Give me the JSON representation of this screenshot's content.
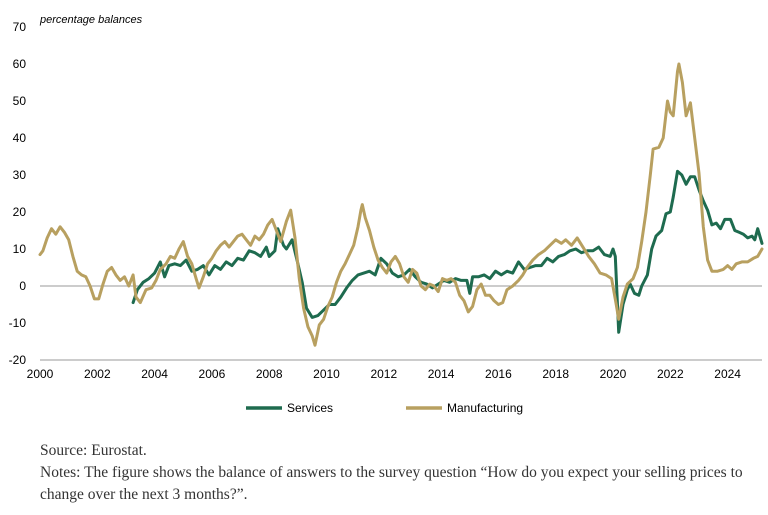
{
  "chart_data": {
    "type": "line",
    "unit_label": "percentage balances",
    "ylim": [
      -20,
      70
    ],
    "yticks": [
      -20,
      -10,
      0,
      10,
      20,
      30,
      40,
      50,
      60,
      70
    ],
    "xlim": [
      2000,
      2025.2
    ],
    "xticks": [
      2000,
      2002,
      2004,
      2006,
      2008,
      2010,
      2012,
      2014,
      2016,
      2018,
      2020,
      2022,
      2024
    ],
    "grid": false,
    "legend_position": "bottom",
    "series": [
      {
        "name": "Services",
        "color": "#1e6b4f",
        "points": [
          [
            2003.25,
            -4.5
          ],
          [
            2003.4,
            -1
          ],
          [
            2003.6,
            1
          ],
          [
            2003.8,
            2
          ],
          [
            2004.0,
            3.5
          ],
          [
            2004.2,
            6.5
          ],
          [
            2004.35,
            2.5
          ],
          [
            2004.5,
            5.5
          ],
          [
            2004.7,
            6
          ],
          [
            2004.9,
            5.5
          ],
          [
            2005.1,
            7
          ],
          [
            2005.3,
            4
          ],
          [
            2005.5,
            4.5
          ],
          [
            2005.7,
            5.5
          ],
          [
            2005.9,
            3
          ],
          [
            2006.1,
            5.5
          ],
          [
            2006.3,
            4.5
          ],
          [
            2006.5,
            6.5
          ],
          [
            2006.7,
            5.5
          ],
          [
            2006.9,
            7.5
          ],
          [
            2007.1,
            7
          ],
          [
            2007.3,
            9.5
          ],
          [
            2007.5,
            9
          ],
          [
            2007.7,
            8
          ],
          [
            2007.9,
            10.5
          ],
          [
            2008.0,
            8
          ],
          [
            2008.2,
            9.5
          ],
          [
            2008.3,
            15.5
          ],
          [
            2008.5,
            11
          ],
          [
            2008.6,
            10
          ],
          [
            2008.8,
            12.5
          ],
          [
            2009.0,
            6
          ],
          [
            2009.15,
            1
          ],
          [
            2009.3,
            -6
          ],
          [
            2009.5,
            -8.5
          ],
          [
            2009.7,
            -8
          ],
          [
            2009.9,
            -6.5
          ],
          [
            2010.1,
            -5
          ],
          [
            2010.3,
            -5
          ],
          [
            2010.5,
            -3
          ],
          [
            2010.7,
            -0.5
          ],
          [
            2010.9,
            1.5
          ],
          [
            2011.1,
            3
          ],
          [
            2011.3,
            3.5
          ],
          [
            2011.5,
            4
          ],
          [
            2011.7,
            3
          ],
          [
            2011.9,
            7.5
          ],
          [
            2012.1,
            6
          ],
          [
            2012.3,
            3.5
          ],
          [
            2012.5,
            2.5
          ],
          [
            2012.7,
            3
          ],
          [
            2012.9,
            4.5
          ],
          [
            2013.1,
            2.5
          ],
          [
            2013.3,
            1
          ],
          [
            2013.5,
            0.5
          ],
          [
            2013.7,
            -0.5
          ],
          [
            2013.9,
            0.5
          ],
          [
            2014.1,
            1.5
          ],
          [
            2014.3,
            1
          ],
          [
            2014.5,
            2
          ],
          [
            2014.7,
            1.5
          ],
          [
            2014.9,
            1.5
          ],
          [
            2015.0,
            -2
          ],
          [
            2015.1,
            2.5
          ],
          [
            2015.3,
            2.5
          ],
          [
            2015.5,
            3
          ],
          [
            2015.7,
            2
          ],
          [
            2015.9,
            4
          ],
          [
            2016.1,
            3
          ],
          [
            2016.3,
            4
          ],
          [
            2016.5,
            3.5
          ],
          [
            2016.7,
            6.5
          ],
          [
            2016.9,
            4.5
          ],
          [
            2017.1,
            5
          ],
          [
            2017.3,
            5.5
          ],
          [
            2017.5,
            5.5
          ],
          [
            2017.7,
            7.5
          ],
          [
            2017.9,
            6.5
          ],
          [
            2018.1,
            8
          ],
          [
            2018.3,
            8.5
          ],
          [
            2018.5,
            9.5
          ],
          [
            2018.7,
            10
          ],
          [
            2018.9,
            9
          ],
          [
            2019.1,
            9.5
          ],
          [
            2019.3,
            9.5
          ],
          [
            2019.5,
            10.5
          ],
          [
            2019.7,
            8.5
          ],
          [
            2019.9,
            8
          ],
          [
            2020.0,
            10
          ],
          [
            2020.08,
            8
          ],
          [
            2020.2,
            -12.5
          ],
          [
            2020.35,
            -5
          ],
          [
            2020.5,
            -1
          ],
          [
            2020.6,
            0.5
          ],
          [
            2020.75,
            -2
          ],
          [
            2020.9,
            -2.5
          ],
          [
            2021.0,
            0
          ],
          [
            2021.2,
            3
          ],
          [
            2021.35,
            10
          ],
          [
            2021.5,
            13.5
          ],
          [
            2021.7,
            15
          ],
          [
            2021.85,
            19.5
          ],
          [
            2022.0,
            20
          ],
          [
            2022.1,
            24
          ],
          [
            2022.25,
            31
          ],
          [
            2022.4,
            30
          ],
          [
            2022.55,
            27.5
          ],
          [
            2022.7,
            29.5
          ],
          [
            2022.85,
            29.5
          ],
          [
            2023.0,
            26
          ],
          [
            2023.15,
            23
          ],
          [
            2023.3,
            20.5
          ],
          [
            2023.45,
            16.5
          ],
          [
            2023.6,
            17
          ],
          [
            2023.75,
            15.5
          ],
          [
            2023.9,
            18
          ],
          [
            2024.1,
            18
          ],
          [
            2024.25,
            15
          ],
          [
            2024.4,
            14.5
          ],
          [
            2024.55,
            14
          ],
          [
            2024.7,
            13
          ],
          [
            2024.85,
            13.5
          ],
          [
            2024.95,
            12.5
          ],
          [
            2025.05,
            15.5
          ],
          [
            2025.2,
            11.5
          ]
        ]
      },
      {
        "name": "Manufacturing",
        "color": "#b8a060",
        "points": [
          [
            2000.0,
            8.5
          ],
          [
            2000.1,
            9.5
          ],
          [
            2000.25,
            13
          ],
          [
            2000.4,
            15.5
          ],
          [
            2000.55,
            14
          ],
          [
            2000.7,
            16
          ],
          [
            2000.85,
            14.5
          ],
          [
            2001.0,
            12.5
          ],
          [
            2001.15,
            8
          ],
          [
            2001.3,
            4
          ],
          [
            2001.45,
            3
          ],
          [
            2001.6,
            2.5
          ],
          [
            2001.75,
            0
          ],
          [
            2001.9,
            -3.5
          ],
          [
            2002.05,
            -3.5
          ],
          [
            2002.2,
            0.5
          ],
          [
            2002.35,
            4
          ],
          [
            2002.5,
            5
          ],
          [
            2002.65,
            3
          ],
          [
            2002.8,
            1.5
          ],
          [
            2002.95,
            2.5
          ],
          [
            2003.1,
            0
          ],
          [
            2003.25,
            3
          ],
          [
            2003.35,
            -3
          ],
          [
            2003.5,
            -4.5
          ],
          [
            2003.7,
            -1
          ],
          [
            2003.9,
            -0.5
          ],
          [
            2004.05,
            1.5
          ],
          [
            2004.2,
            4.5
          ],
          [
            2004.4,
            6
          ],
          [
            2004.55,
            8
          ],
          [
            2004.7,
            7.5
          ],
          [
            2004.85,
            10
          ],
          [
            2005.0,
            12
          ],
          [
            2005.15,
            8
          ],
          [
            2005.3,
            6
          ],
          [
            2005.45,
            2
          ],
          [
            2005.55,
            -0.5
          ],
          [
            2005.7,
            2.5
          ],
          [
            2005.85,
            6
          ],
          [
            2006.0,
            7.5
          ],
          [
            2006.15,
            9.5
          ],
          [
            2006.3,
            11
          ],
          [
            2006.45,
            12
          ],
          [
            2006.6,
            10.5
          ],
          [
            2006.75,
            12
          ],
          [
            2006.9,
            13.5
          ],
          [
            2007.05,
            14
          ],
          [
            2007.2,
            12.5
          ],
          [
            2007.35,
            11
          ],
          [
            2007.5,
            13.5
          ],
          [
            2007.65,
            12.5
          ],
          [
            2007.8,
            14
          ],
          [
            2007.95,
            16.5
          ],
          [
            2008.1,
            18
          ],
          [
            2008.25,
            15
          ],
          [
            2008.4,
            12
          ],
          [
            2008.6,
            17.5
          ],
          [
            2008.75,
            20.5
          ],
          [
            2008.9,
            13
          ],
          [
            2009.05,
            2
          ],
          [
            2009.2,
            -6
          ],
          [
            2009.35,
            -11
          ],
          [
            2009.5,
            -13.5
          ],
          [
            2009.6,
            -16
          ],
          [
            2009.75,
            -10.5
          ],
          [
            2009.9,
            -9
          ],
          [
            2010.05,
            -5.5
          ],
          [
            2010.2,
            -3
          ],
          [
            2010.35,
            1
          ],
          [
            2010.5,
            4
          ],
          [
            2010.65,
            6
          ],
          [
            2010.8,
            8.5
          ],
          [
            2010.95,
            11
          ],
          [
            2011.1,
            16
          ],
          [
            2011.2,
            20.5
          ],
          [
            2011.25,
            22
          ],
          [
            2011.35,
            18.5
          ],
          [
            2011.5,
            15
          ],
          [
            2011.65,
            10.5
          ],
          [
            2011.8,
            7
          ],
          [
            2011.95,
            5
          ],
          [
            2012.1,
            3.5
          ],
          [
            2012.25,
            6.5
          ],
          [
            2012.4,
            8
          ],
          [
            2012.55,
            6
          ],
          [
            2012.7,
            2.5
          ],
          [
            2012.85,
            1
          ],
          [
            2013.0,
            4.5
          ],
          [
            2013.15,
            3.5
          ],
          [
            2013.3,
            0
          ],
          [
            2013.45,
            -1
          ],
          [
            2013.6,
            0.5
          ],
          [
            2013.75,
            0
          ],
          [
            2013.9,
            -1.5
          ],
          [
            2014.05,
            2
          ],
          [
            2014.2,
            1.5
          ],
          [
            2014.35,
            2
          ],
          [
            2014.5,
            1
          ],
          [
            2014.65,
            -2.5
          ],
          [
            2014.8,
            -4
          ],
          [
            2014.95,
            -7
          ],
          [
            2015.1,
            -5.5
          ],
          [
            2015.25,
            -1
          ],
          [
            2015.4,
            0.5
          ],
          [
            2015.55,
            -2.5
          ],
          [
            2015.7,
            -2.5
          ],
          [
            2015.85,
            -4
          ],
          [
            2016.0,
            -5
          ],
          [
            2016.15,
            -4.5
          ],
          [
            2016.3,
            -1
          ],
          [
            2016.5,
            0
          ],
          [
            2016.7,
            1.5
          ],
          [
            2016.85,
            3
          ],
          [
            2017.0,
            5
          ],
          [
            2017.2,
            7
          ],
          [
            2017.4,
            8.5
          ],
          [
            2017.6,
            9.5
          ],
          [
            2017.8,
            11
          ],
          [
            2018.0,
            12.5
          ],
          [
            2018.2,
            11.5
          ],
          [
            2018.35,
            12.5
          ],
          [
            2018.55,
            11
          ],
          [
            2018.75,
            13
          ],
          [
            2018.95,
            10.5
          ],
          [
            2019.15,
            8
          ],
          [
            2019.35,
            6
          ],
          [
            2019.55,
            3.5
          ],
          [
            2019.75,
            3
          ],
          [
            2019.95,
            2
          ],
          [
            2020.1,
            -4.5
          ],
          [
            2020.2,
            -9
          ],
          [
            2020.35,
            -3
          ],
          [
            2020.5,
            0.5
          ],
          [
            2020.7,
            2
          ],
          [
            2020.85,
            5
          ],
          [
            2021.0,
            12
          ],
          [
            2021.15,
            20
          ],
          [
            2021.3,
            30
          ],
          [
            2021.4,
            37
          ],
          [
            2021.6,
            37.5
          ],
          [
            2021.75,
            40
          ],
          [
            2021.9,
            50
          ],
          [
            2022.0,
            47
          ],
          [
            2022.1,
            46
          ],
          [
            2022.25,
            58
          ],
          [
            2022.3,
            60
          ],
          [
            2022.42,
            55
          ],
          [
            2022.55,
            46
          ],
          [
            2022.7,
            49.5
          ],
          [
            2022.85,
            40
          ],
          [
            2023.0,
            30.5
          ],
          [
            2023.15,
            16
          ],
          [
            2023.3,
            7
          ],
          [
            2023.45,
            4
          ],
          [
            2023.65,
            4
          ],
          [
            2023.85,
            4.5
          ],
          [
            2024.0,
            5.5
          ],
          [
            2024.15,
            4.5
          ],
          [
            2024.3,
            6
          ],
          [
            2024.5,
            6.5
          ],
          [
            2024.7,
            6.5
          ],
          [
            2024.9,
            7.5
          ],
          [
            2025.05,
            8
          ],
          [
            2025.2,
            10
          ]
        ]
      }
    ]
  },
  "notes": {
    "source": "Source: Eurostat.",
    "text": "Notes: The figure shows the balance of answers to the survey question “How do you expect your selling prices to change over the next 3 months?”."
  }
}
